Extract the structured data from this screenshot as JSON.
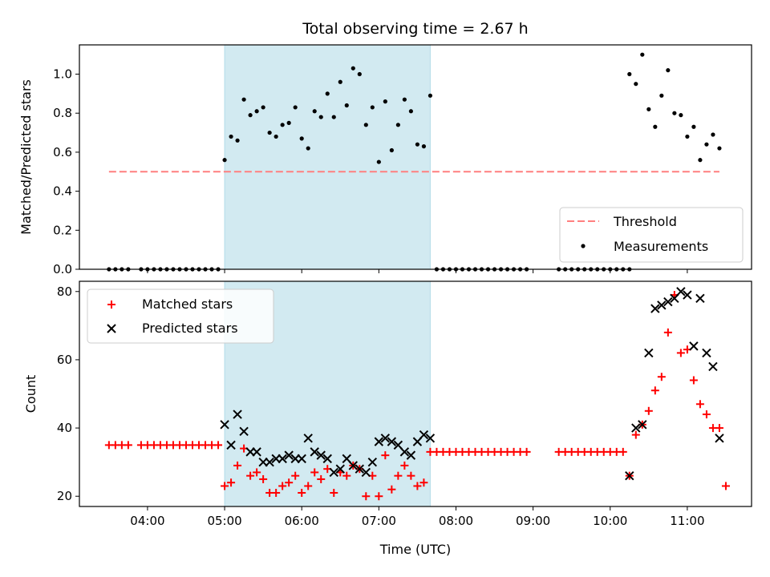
{
  "chart_data": {
    "title": "Total observing time = 2.67 h",
    "shaded_region": {
      "x_start": "05:00",
      "x_end": "07:40",
      "color": "#add8e6"
    },
    "x_axis": {
      "label": "Time (UTC)",
      "range": [
        "03:07",
        "11:50"
      ],
      "tick_labels": [
        "04:00",
        "05:00",
        "06:00",
        "07:00",
        "08:00",
        "09:00",
        "10:00",
        "11:00"
      ]
    },
    "panels": [
      {
        "type": "scatter",
        "ylabel": "Matched/Predicted stars",
        "ylim": [
          0,
          1.15
        ],
        "y_tick_labels": [
          "0.0",
          "0.2",
          "0.4",
          "0.6",
          "0.8",
          "1.0"
        ],
        "legend": {
          "placement": "lower-right",
          "entries": [
            "Threshold",
            "Measurements"
          ]
        },
        "threshold": {
          "name": "Threshold",
          "value": 0.5,
          "x_start": "03:30",
          "x_end": "11:25",
          "color": "#ff7f7f"
        },
        "series": [
          {
            "name": "Measurements",
            "color": "#000000",
            "points": [
              [
                "03:30",
                0
              ],
              [
                "03:35",
                0
              ],
              [
                "03:40",
                0
              ],
              [
                "03:45",
                0
              ],
              [
                "03:55",
                0
              ],
              [
                "04:00",
                0
              ],
              [
                "04:05",
                0
              ],
              [
                "04:10",
                0
              ],
              [
                "04:15",
                0
              ],
              [
                "04:20",
                0
              ],
              [
                "04:25",
                0
              ],
              [
                "04:30",
                0
              ],
              [
                "04:35",
                0
              ],
              [
                "04:40",
                0
              ],
              [
                "04:45",
                0
              ],
              [
                "04:50",
                0
              ],
              [
                "04:55",
                0
              ],
              [
                "05:00",
                0.56
              ],
              [
                "05:05",
                0.68
              ],
              [
                "05:10",
                0.66
              ],
              [
                "05:15",
                0.87
              ],
              [
                "05:20",
                0.79
              ],
              [
                "05:25",
                0.81
              ],
              [
                "05:30",
                0.83
              ],
              [
                "05:35",
                0.7
              ],
              [
                "05:40",
                0.68
              ],
              [
                "05:45",
                0.74
              ],
              [
                "05:50",
                0.75
              ],
              [
                "05:55",
                0.83
              ],
              [
                "06:00",
                0.67
              ],
              [
                "06:05",
                0.62
              ],
              [
                "06:10",
                0.81
              ],
              [
                "06:15",
                0.78
              ],
              [
                "06:20",
                0.9
              ],
              [
                "06:25",
                0.78
              ],
              [
                "06:30",
                0.96
              ],
              [
                "06:35",
                0.84
              ],
              [
                "06:40",
                1.03
              ],
              [
                "06:45",
                1.0
              ],
              [
                "06:50",
                0.74
              ],
              [
                "06:55",
                0.83
              ],
              [
                "07:00",
                0.55
              ],
              [
                "07:05",
                0.86
              ],
              [
                "07:10",
                0.61
              ],
              [
                "07:15",
                0.74
              ],
              [
                "07:20",
                0.87
              ],
              [
                "07:25",
                0.81
              ],
              [
                "07:30",
                0.64
              ],
              [
                "07:35",
                0.63
              ],
              [
                "07:40",
                0.89
              ],
              [
                "07:45",
                0
              ],
              [
                "07:50",
                0
              ],
              [
                "07:55",
                0
              ],
              [
                "08:00",
                0
              ],
              [
                "08:05",
                0
              ],
              [
                "08:10",
                0
              ],
              [
                "08:15",
                0
              ],
              [
                "08:20",
                0
              ],
              [
                "08:25",
                0
              ],
              [
                "08:30",
                0
              ],
              [
                "08:35",
                0
              ],
              [
                "08:40",
                0
              ],
              [
                "08:45",
                0
              ],
              [
                "08:50",
                0
              ],
              [
                "08:55",
                0
              ],
              [
                "09:20",
                0
              ],
              [
                "09:25",
                0
              ],
              [
                "09:30",
                0
              ],
              [
                "09:35",
                0
              ],
              [
                "09:40",
                0
              ],
              [
                "09:45",
                0
              ],
              [
                "09:50",
                0
              ],
              [
                "09:55",
                0
              ],
              [
                "10:00",
                0
              ],
              [
                "10:05",
                0
              ],
              [
                "10:10",
                0
              ],
              [
                "10:15",
                0
              ],
              [
                "10:15",
                1.0
              ],
              [
                "10:20",
                0.95
              ],
              [
                "10:25",
                1.1
              ],
              [
                "10:30",
                0.82
              ],
              [
                "10:35",
                0.73
              ],
              [
                "10:40",
                0.89
              ],
              [
                "10:45",
                1.02
              ],
              [
                "10:50",
                0.8
              ],
              [
                "10:55",
                0.79
              ],
              [
                "11:00",
                0.68
              ],
              [
                "11:05",
                0.73
              ],
              [
                "11:10",
                0.56
              ],
              [
                "11:15",
                0.64
              ],
              [
                "11:20",
                0.69
              ],
              [
                "11:25",
                0.62
              ]
            ]
          }
        ]
      },
      {
        "type": "scatter",
        "ylabel": "Count",
        "ylim": [
          17,
          83
        ],
        "y_tick_labels": [
          "20",
          "40",
          "60",
          "80"
        ],
        "legend": {
          "placement": "upper-left",
          "entries": [
            "Matched stars",
            "Predicted stars"
          ]
        },
        "series": [
          {
            "name": "Matched stars",
            "marker": "plus",
            "color": "#ff0000",
            "points": [
              [
                "03:30",
                35
              ],
              [
                "03:35",
                35
              ],
              [
                "03:40",
                35
              ],
              [
                "03:45",
                35
              ],
              [
                "03:55",
                35
              ],
              [
                "04:00",
                35
              ],
              [
                "04:05",
                35
              ],
              [
                "04:10",
                35
              ],
              [
                "04:15",
                35
              ],
              [
                "04:20",
                35
              ],
              [
                "04:25",
                35
              ],
              [
                "04:30",
                35
              ],
              [
                "04:35",
                35
              ],
              [
                "04:40",
                35
              ],
              [
                "04:45",
                35
              ],
              [
                "04:50",
                35
              ],
              [
                "04:55",
                35
              ],
              [
                "05:00",
                23
              ],
              [
                "05:05",
                24
              ],
              [
                "05:10",
                29
              ],
              [
                "05:15",
                34
              ],
              [
                "05:20",
                26
              ],
              [
                "05:25",
                27
              ],
              [
                "05:30",
                25
              ],
              [
                "05:35",
                21
              ],
              [
                "05:40",
                21
              ],
              [
                "05:45",
                23
              ],
              [
                "05:50",
                24
              ],
              [
                "05:55",
                26
              ],
              [
                "06:00",
                21
              ],
              [
                "06:05",
                23
              ],
              [
                "06:10",
                27
              ],
              [
                "06:15",
                25
              ],
              [
                "06:20",
                28
              ],
              [
                "06:25",
                21
              ],
              [
                "06:30",
                27
              ],
              [
                "06:35",
                26
              ],
              [
                "06:40",
                29
              ],
              [
                "06:45",
                28
              ],
              [
                "06:50",
                20
              ],
              [
                "06:55",
                26
              ],
              [
                "07:00",
                20
              ],
              [
                "07:05",
                32
              ],
              [
                "07:10",
                22
              ],
              [
                "07:15",
                26
              ],
              [
                "07:20",
                29
              ],
              [
                "07:25",
                26
              ],
              [
                "07:30",
                23
              ],
              [
                "07:35",
                24
              ],
              [
                "07:40",
                33
              ],
              [
                "07:45",
                33
              ],
              [
                "07:50",
                33
              ],
              [
                "07:55",
                33
              ],
              [
                "08:00",
                33
              ],
              [
                "08:05",
                33
              ],
              [
                "08:10",
                33
              ],
              [
                "08:15",
                33
              ],
              [
                "08:20",
                33
              ],
              [
                "08:25",
                33
              ],
              [
                "08:30",
                33
              ],
              [
                "08:35",
                33
              ],
              [
                "08:40",
                33
              ],
              [
                "08:45",
                33
              ],
              [
                "08:50",
                33
              ],
              [
                "08:55",
                33
              ],
              [
                "09:20",
                33
              ],
              [
                "09:25",
                33
              ],
              [
                "09:30",
                33
              ],
              [
                "09:35",
                33
              ],
              [
                "09:40",
                33
              ],
              [
                "09:45",
                33
              ],
              [
                "09:50",
                33
              ],
              [
                "09:55",
                33
              ],
              [
                "10:00",
                33
              ],
              [
                "10:05",
                33
              ],
              [
                "10:10",
                33
              ],
              [
                "10:15",
                26
              ],
              [
                "10:20",
                38
              ],
              [
                "10:25",
                41
              ],
              [
                "10:30",
                45
              ],
              [
                "10:35",
                51
              ],
              [
                "10:40",
                55
              ],
              [
                "10:45",
                68
              ],
              [
                "10:50",
                79
              ],
              [
                "10:55",
                62
              ],
              [
                "11:00",
                63
              ],
              [
                "11:05",
                54
              ],
              [
                "11:10",
                47
              ],
              [
                "11:15",
                44
              ],
              [
                "11:20",
                40
              ],
              [
                "11:25",
                40
              ],
              [
                "11:30",
                23
              ]
            ]
          },
          {
            "name": "Predicted stars",
            "marker": "x",
            "color": "#000000",
            "points": [
              [
                "05:00",
                41
              ],
              [
                "05:05",
                35
              ],
              [
                "05:10",
                44
              ],
              [
                "05:15",
                39
              ],
              [
                "05:20",
                33
              ],
              [
                "05:25",
                33
              ],
              [
                "05:30",
                30
              ],
              [
                "05:35",
                30
              ],
              [
                "05:40",
                31
              ],
              [
                "05:45",
                31
              ],
              [
                "05:50",
                32
              ],
              [
                "05:55",
                31
              ],
              [
                "06:00",
                31
              ],
              [
                "06:05",
                37
              ],
              [
                "06:10",
                33
              ],
              [
                "06:15",
                32
              ],
              [
                "06:20",
                31
              ],
              [
                "06:25",
                27
              ],
              [
                "06:30",
                28
              ],
              [
                "06:35",
                31
              ],
              [
                "06:40",
                29
              ],
              [
                "06:45",
                28
              ],
              [
                "06:50",
                27
              ],
              [
                "06:55",
                30
              ],
              [
                "07:00",
                36
              ],
              [
                "07:05",
                37
              ],
              [
                "07:10",
                36
              ],
              [
                "07:15",
                35
              ],
              [
                "07:20",
                33
              ],
              [
                "07:25",
                32
              ],
              [
                "07:30",
                36
              ],
              [
                "07:35",
                38
              ],
              [
                "07:40",
                37
              ],
              [
                "10:15",
                26
              ],
              [
                "10:20",
                40
              ],
              [
                "10:25",
                41
              ],
              [
                "10:30",
                62
              ],
              [
                "10:35",
                75
              ],
              [
                "10:40",
                76
              ],
              [
                "10:45",
                77
              ],
              [
                "10:50",
                78
              ],
              [
                "10:55",
                80
              ],
              [
                "11:00",
                79
              ],
              [
                "11:05",
                64
              ],
              [
                "11:10",
                78
              ],
              [
                "11:15",
                62
              ],
              [
                "11:20",
                58
              ],
              [
                "11:25",
                37
              ]
            ]
          }
        ]
      }
    ]
  }
}
